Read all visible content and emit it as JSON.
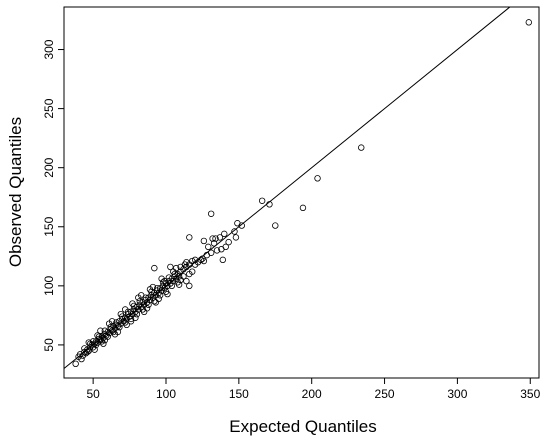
{
  "chart_data": {
    "type": "scatter",
    "title": "",
    "xlabel": "Expected Quantiles",
    "ylabel": "Observed Quantiles",
    "xlim": [
      30,
      356
    ],
    "ylim": [
      22,
      336
    ],
    "xticks": [
      50,
      100,
      150,
      200,
      250,
      300,
      350
    ],
    "yticks": [
      50,
      100,
      150,
      200,
      250,
      300
    ],
    "grid": false,
    "reference_line": {
      "slope": 1,
      "intercept": 0
    },
    "points": [
      [
        38,
        34
      ],
      [
        40,
        40
      ],
      [
        41,
        42
      ],
      [
        43,
        41
      ],
      [
        44,
        44
      ],
      [
        45,
        43
      ],
      [
        46,
        46
      ],
      [
        47,
        45
      ],
      [
        48,
        48
      ],
      [
        49,
        50
      ],
      [
        50,
        48
      ],
      [
        51,
        51
      ],
      [
        52,
        53
      ],
      [
        53,
        52
      ],
      [
        54,
        55
      ],
      [
        55,
        54
      ],
      [
        56,
        57
      ],
      [
        57,
        56
      ],
      [
        58,
        59
      ],
      [
        59,
        58
      ],
      [
        60,
        61
      ],
      [
        61,
        60
      ],
      [
        62,
        63
      ],
      [
        63,
        62
      ],
      [
        64,
        66
      ],
      [
        65,
        64
      ],
      [
        66,
        67
      ],
      [
        67,
        66
      ],
      [
        68,
        70
      ],
      [
        69,
        68
      ],
      [
        70,
        72
      ],
      [
        71,
        70
      ],
      [
        72,
        73
      ],
      [
        73,
        72
      ],
      [
        74,
        76
      ],
      [
        75,
        74
      ],
      [
        76,
        78
      ],
      [
        77,
        76
      ],
      [
        78,
        80
      ],
      [
        79,
        78
      ],
      [
        80,
        82
      ],
      [
        81,
        80
      ],
      [
        82,
        84
      ],
      [
        83,
        82
      ],
      [
        84,
        86
      ],
      [
        85,
        84
      ],
      [
        86,
        88
      ],
      [
        87,
        86
      ],
      [
        88,
        90
      ],
      [
        89,
        88
      ],
      [
        90,
        92
      ],
      [
        91,
        90
      ],
      [
        92,
        94
      ],
      [
        93,
        92
      ],
      [
        94,
        96
      ],
      [
        95,
        94
      ],
      [
        96,
        98
      ],
      [
        97,
        96
      ],
      [
        98,
        100
      ],
      [
        99,
        98
      ],
      [
        100,
        102
      ],
      [
        101,
        100
      ],
      [
        102,
        104
      ],
      [
        103,
        102
      ],
      [
        104,
        106
      ],
      [
        105,
        104
      ],
      [
        106,
        108
      ],
      [
        107,
        106
      ],
      [
        108,
        110
      ],
      [
        109,
        108
      ],
      [
        110,
        112
      ],
      [
        112,
        114
      ],
      [
        114,
        116
      ],
      [
        116,
        118
      ],
      [
        118,
        121
      ],
      [
        120,
        122
      ],
      [
        44,
        47
      ],
      [
        46,
        44
      ],
      [
        48,
        51
      ],
      [
        50,
        53
      ],
      [
        52,
        50
      ],
      [
        54,
        57
      ],
      [
        56,
        53
      ],
      [
        58,
        62
      ],
      [
        60,
        57
      ],
      [
        62,
        65
      ],
      [
        64,
        61
      ],
      [
        66,
        69
      ],
      [
        68,
        65
      ],
      [
        70,
        74
      ],
      [
        72,
        69
      ],
      [
        74,
        78
      ],
      [
        76,
        72
      ],
      [
        78,
        83
      ],
      [
        80,
        76
      ],
      [
        82,
        87
      ],
      [
        84,
        80
      ],
      [
        86,
        90
      ],
      [
        88,
        84
      ],
      [
        90,
        95
      ],
      [
        92,
        87
      ],
      [
        94,
        98
      ],
      [
        96,
        92
      ],
      [
        98,
        103
      ],
      [
        100,
        95
      ],
      [
        102,
        107
      ],
      [
        104,
        100
      ],
      [
        106,
        110
      ],
      [
        108,
        103
      ],
      [
        110,
        116
      ],
      [
        112,
        108
      ],
      [
        114,
        120
      ],
      [
        116,
        110
      ],
      [
        55,
        62
      ],
      [
        58,
        54
      ],
      [
        63,
        70
      ],
      [
        67,
        61
      ],
      [
        72,
        80
      ],
      [
        76,
        70
      ],
      [
        81,
        90
      ],
      [
        85,
        78
      ],
      [
        89,
        97
      ],
      [
        93,
        86
      ],
      [
        97,
        106
      ],
      [
        101,
        93
      ],
      [
        105,
        112
      ],
      [
        109,
        101
      ],
      [
        113,
        118
      ],
      [
        42,
        38
      ],
      [
        47,
        52
      ],
      [
        51,
        46
      ],
      [
        53,
        58
      ],
      [
        57,
        51
      ],
      [
        61,
        68
      ],
      [
        65,
        59
      ],
      [
        69,
        76
      ],
      [
        73,
        67
      ],
      [
        77,
        85
      ],
      [
        79,
        73
      ],
      [
        83,
        92
      ],
      [
        87,
        81
      ],
      [
        91,
        99
      ],
      [
        95,
        89
      ],
      [
        99,
        104
      ],
      [
        92,
        115
      ],
      [
        103,
        116
      ],
      [
        107,
        115
      ],
      [
        110,
        105
      ],
      [
        116,
        100
      ],
      [
        118,
        112
      ],
      [
        114,
        104
      ],
      [
        120,
        118
      ],
      [
        122,
        120
      ],
      [
        124,
        122
      ],
      [
        125,
        123
      ],
      [
        126,
        121
      ],
      [
        128,
        126
      ],
      [
        129,
        133
      ],
      [
        126,
        138
      ],
      [
        131,
        128
      ],
      [
        133,
        136
      ],
      [
        134,
        140
      ],
      [
        135,
        130
      ],
      [
        137,
        141
      ],
      [
        138,
        131
      ],
      [
        139,
        122
      ],
      [
        140,
        144
      ],
      [
        141,
        133
      ],
      [
        143,
        137
      ],
      [
        147,
        146
      ],
      [
        148,
        141
      ],
      [
        149,
        153
      ],
      [
        152,
        151
      ],
      [
        131,
        161
      ],
      [
        132,
        140
      ],
      [
        116,
        141
      ],
      [
        166,
        172
      ],
      [
        171,
        169
      ],
      [
        175,
        151
      ],
      [
        194,
        166
      ],
      [
        204,
        191
      ],
      [
        234,
        217
      ],
      [
        349,
        323
      ]
    ]
  }
}
